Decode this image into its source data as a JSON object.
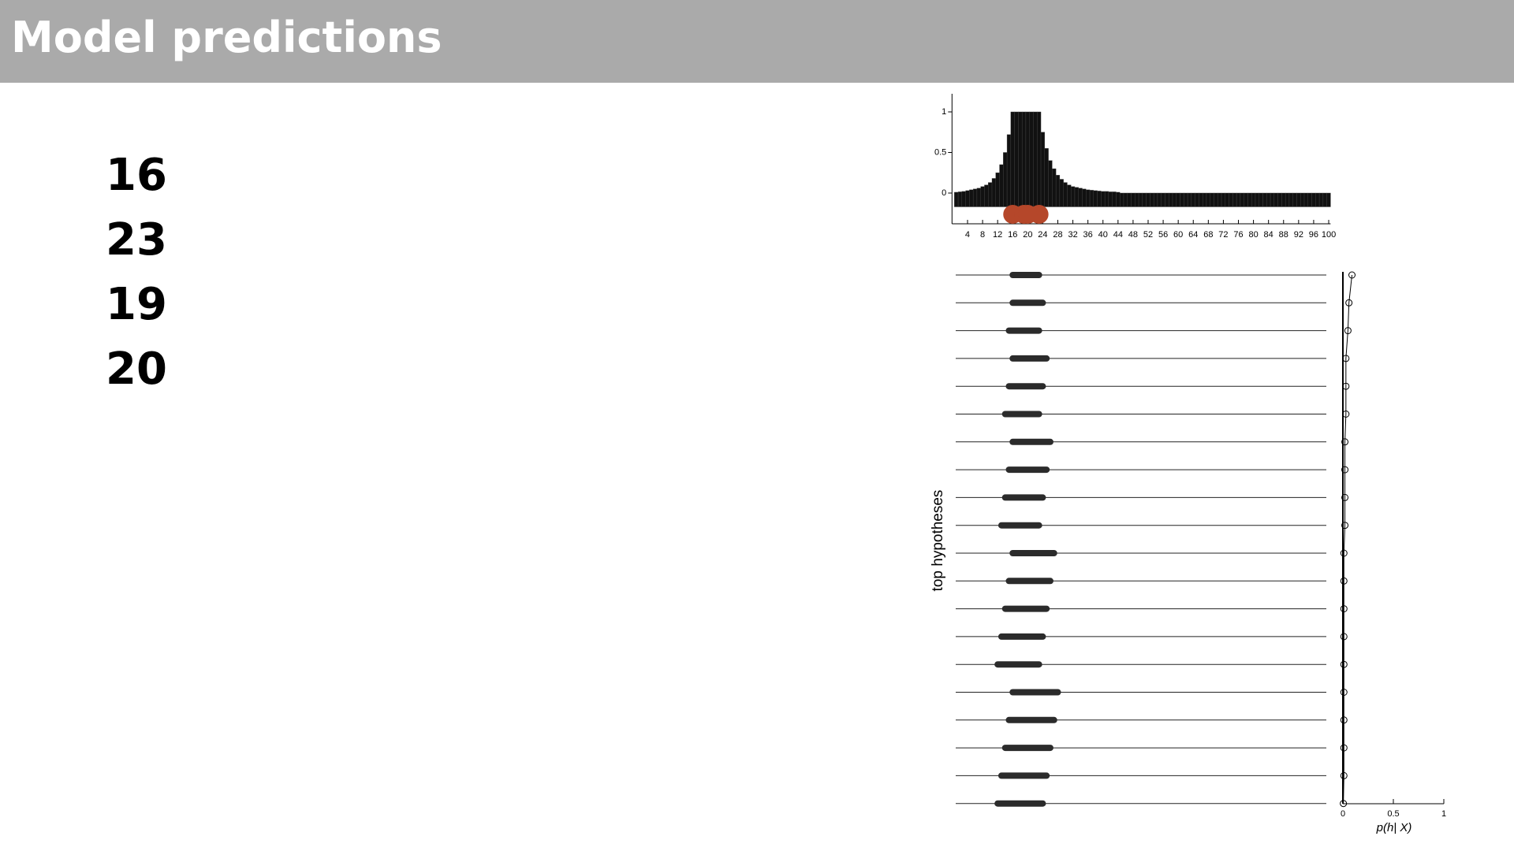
{
  "slide": {
    "title": "Model predictions",
    "items": [
      16,
      23,
      19,
      20
    ]
  },
  "chart_data": [
    {
      "type": "bar",
      "x": [
        1,
        2,
        3,
        4,
        5,
        6,
        7,
        8,
        9,
        10,
        11,
        12,
        13,
        14,
        15,
        16,
        17,
        18,
        19,
        20,
        21,
        22,
        23,
        24,
        25,
        26,
        27,
        28,
        29,
        30,
        31,
        32,
        33,
        34,
        35,
        36,
        37,
        38,
        39,
        40,
        41,
        42,
        43,
        44,
        45,
        46,
        47,
        48,
        49,
        50,
        51,
        52,
        53,
        54,
        55,
        56,
        57,
        58,
        59,
        60,
        61,
        62,
        63,
        64,
        65,
        66,
        67,
        68,
        69,
        70,
        71,
        72,
        73,
        74,
        75,
        76,
        77,
        78,
        79,
        80,
        81,
        82,
        83,
        84,
        85,
        86,
        87,
        88,
        89,
        90,
        91,
        92,
        93,
        94,
        95,
        96,
        97,
        98,
        99,
        100
      ],
      "values": [
        0.01,
        0.015,
        0.02,
        0.03,
        0.04,
        0.05,
        0.06,
        0.08,
        0.1,
        0.13,
        0.18,
        0.25,
        0.35,
        0.5,
        0.72,
        1,
        1,
        1,
        1,
        1,
        1,
        1,
        1,
        0.75,
        0.55,
        0.4,
        0.3,
        0.22,
        0.17,
        0.13,
        0.1,
        0.08,
        0.07,
        0.06,
        0.05,
        0.04,
        0.035,
        0.03,
        0.025,
        0.02,
        0.02,
        0.015,
        0.015,
        0.01,
        0,
        0,
        0,
        0,
        0,
        0,
        0,
        0,
        0,
        0,
        0,
        0,
        0,
        0,
        0,
        0,
        0,
        0,
        0,
        0,
        0,
        0,
        0,
        0,
        0,
        0,
        0,
        0,
        0,
        0,
        0,
        0,
        0,
        0,
        0,
        0,
        0,
        0,
        0,
        0,
        0,
        0,
        0,
        0,
        0,
        0,
        0,
        0,
        0,
        0,
        0,
        0,
        0,
        0,
        0,
        0
      ],
      "color": "#111111",
      "examples": [
        16,
        23,
        19,
        20
      ],
      "example_color": "#b5472a",
      "xlim": [
        0.5,
        100.5
      ],
      "xticks": [
        4,
        8,
        12,
        16,
        20,
        24,
        28,
        32,
        36,
        40,
        44,
        48,
        52,
        56,
        60,
        64,
        68,
        72,
        76,
        80,
        84,
        88,
        92,
        96,
        100
      ],
      "ylim": [
        -0.17,
        1.2
      ],
      "yticks": [
        0,
        0.5,
        1
      ]
    },
    {
      "type": "interval",
      "ylabel": "top hypotheses",
      "xlim": [
        0.5,
        100.5
      ],
      "color": "#2b2b2b",
      "intervals": [
        [
          16,
          23
        ],
        [
          16,
          24
        ],
        [
          15,
          23
        ],
        [
          16,
          25
        ],
        [
          15,
          24
        ],
        [
          14,
          23
        ],
        [
          16,
          26
        ],
        [
          15,
          25
        ],
        [
          14,
          24
        ],
        [
          13,
          23
        ],
        [
          16,
          27
        ],
        [
          15,
          26
        ],
        [
          14,
          25
        ],
        [
          13,
          24
        ],
        [
          12,
          23
        ],
        [
          16,
          28
        ],
        [
          15,
          27
        ],
        [
          14,
          26
        ],
        [
          13,
          25
        ],
        [
          12,
          24
        ]
      ]
    },
    {
      "type": "dot",
      "xlabel": "p(h| X)",
      "xlim": [
        0,
        1
      ],
      "xticks": [
        0,
        0.5,
        1
      ],
      "values": [
        0.09,
        0.06,
        0.05,
        0.03,
        0.03,
        0.03,
        0.02,
        0.02,
        0.02,
        0.02,
        0.01,
        0.01,
        0.01,
        0.01,
        0.01,
        0.01,
        0.01,
        0.01,
        0.01,
        0.005
      ]
    }
  ]
}
